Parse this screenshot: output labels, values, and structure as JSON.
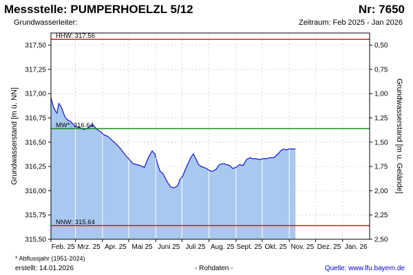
{
  "header": {
    "title": "Messstelle: PUMPERHOELZL 5/12",
    "number": "Nr: 7650",
    "aquifer": "Grundwasserleiter:",
    "period": "Zeitraum: Feb 2025 - Jan 2026"
  },
  "footer": {
    "footnote": "* Abflussjahr (1951-2024)",
    "created": "erstellt:  14.01.2026",
    "raw": "- Rohdaten -",
    "source": "Quelle:  www.lfu.bayern.de"
  },
  "chart_data": {
    "type": "area",
    "ylabel": "Grundwasserstand [m ü. NN]",
    "ylabel_right": "Grundwasserstand [m u. Gelände]",
    "ylim": [
      315.5,
      317.625
    ],
    "yticks": [
      "315,50",
      "315,75",
      "316,00",
      "316,25",
      "316,50",
      "316,75",
      "317,00",
      "317,25",
      "317,50"
    ],
    "yticks_right": [
      "0,50",
      "0,75",
      "1,00",
      "1,25",
      "1,50",
      "1,75",
      "2,00",
      "2,25",
      "2,50"
    ],
    "x_ticks": [
      "Feb. 25",
      "Mrz. 25",
      "Apr. 25",
      "Mai 25",
      "Juni 25",
      "Juli 25",
      "Aug. 25",
      "Sept. 25",
      "Okt. 25",
      "Nov. 25",
      "Dez. 25",
      "Jan. 26"
    ],
    "reference_lines": [
      {
        "label": "HHW: 317.56",
        "value": 317.56,
        "color": "#e00000"
      },
      {
        "label": "MW*: 316.64",
        "value": 316.64,
        "color": "#008000"
      },
      {
        "label": "NNW: 315.64",
        "value": 315.64,
        "color": "#e00000"
      }
    ],
    "series": [
      {
        "color": "#0000cc",
        "fill": "#a8c8f0",
        "x": [
          "2025-02-01",
          "2025-02-04",
          "2025-02-07",
          "2025-02-08",
          "2025-02-10",
          "2025-02-13",
          "2025-02-17",
          "2025-02-20",
          "2025-02-24",
          "2025-03-01",
          "2025-03-06",
          "2025-03-11",
          "2025-03-16",
          "2025-03-21",
          "2025-03-26",
          "2025-03-30",
          "2025-04-02",
          "2025-04-07",
          "2025-04-12",
          "2025-04-17",
          "2025-04-22",
          "2025-04-27",
          "2025-05-02",
          "2025-05-06",
          "2025-05-10",
          "2025-05-14",
          "2025-05-19",
          "2025-05-24",
          "2025-05-28",
          "2025-05-31",
          "2025-06-03",
          "2025-06-06",
          "2025-06-09",
          "2025-06-12",
          "2025-06-15",
          "2025-06-18",
          "2025-06-22",
          "2025-06-26",
          "2025-06-29",
          "2025-07-02",
          "2025-07-05",
          "2025-07-08",
          "2025-07-11",
          "2025-07-14",
          "2025-07-17",
          "2025-07-20",
          "2025-07-23",
          "2025-07-26",
          "2025-07-29",
          "2025-08-01",
          "2025-08-05",
          "2025-08-09",
          "2025-08-13",
          "2025-08-17",
          "2025-08-21",
          "2025-08-25",
          "2025-08-28",
          "2025-09-01",
          "2025-09-05",
          "2025-09-09",
          "2025-09-13",
          "2025-09-17",
          "2025-09-20",
          "2025-09-24",
          "2025-09-28",
          "2025-10-02",
          "2025-10-06",
          "2025-10-10",
          "2025-10-14",
          "2025-10-18",
          "2025-10-22",
          "2025-10-25",
          "2025-10-28",
          "2025-11-01",
          "2025-11-05",
          "2025-11-08"
        ],
        "values": [
          316.96,
          316.86,
          316.81,
          316.8,
          316.9,
          316.86,
          316.76,
          316.73,
          316.71,
          316.66,
          316.65,
          316.63,
          316.65,
          316.68,
          316.63,
          316.61,
          316.58,
          316.56,
          316.52,
          316.48,
          316.43,
          316.37,
          316.32,
          316.28,
          316.27,
          316.26,
          316.24,
          316.35,
          316.41,
          316.38,
          316.28,
          316.2,
          316.18,
          316.13,
          316.08,
          316.04,
          316.03,
          316.05,
          316.12,
          316.15,
          316.22,
          316.28,
          316.34,
          316.38,
          316.33,
          316.27,
          316.25,
          316.24,
          316.23,
          316.21,
          316.2,
          316.22,
          316.27,
          316.28,
          316.27,
          316.26,
          316.23,
          316.24,
          316.27,
          316.26,
          316.32,
          316.34,
          316.33,
          316.33,
          316.32,
          316.33,
          316.33,
          316.34,
          316.34,
          316.37,
          316.41,
          316.43,
          316.42,
          316.43,
          316.43,
          316.43
        ]
      }
    ]
  }
}
